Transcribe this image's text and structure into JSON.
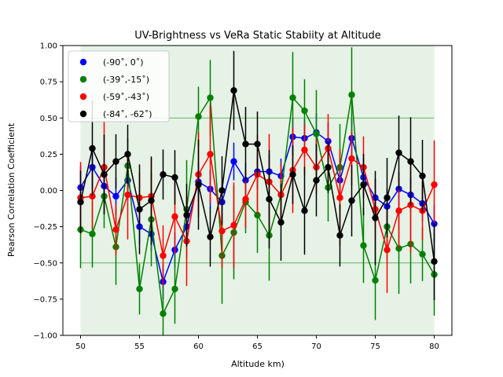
{
  "chart_data": {
    "type": "line",
    "title": "UV-Brightness vs VeRa Static Stabiity at Altitude",
    "xlabel": "Altitude km)",
    "ylabel": "Pearson Correlation Coefficient",
    "xlim": [
      48.5,
      81.5
    ],
    "ylim": [
      -1.0,
      1.0
    ],
    "xticks": [
      50,
      55,
      60,
      65,
      70,
      75,
      80
    ],
    "yticks": [
      -1.0,
      -0.75,
      -0.5,
      -0.25,
      0.0,
      0.25,
      0.5,
      0.75,
      1.0
    ],
    "grid": false,
    "legend_position": "upper-left",
    "shaded_band": {
      "x": [
        50,
        80
      ],
      "y": [
        -1.0,
        1.0
      ],
      "color": "#008000",
      "opacity": 0.1
    },
    "reference_lines": [
      {
        "y": 0.5,
        "x": [
          50,
          80
        ],
        "color": "#008000"
      },
      {
        "y": -0.5,
        "x": [
          50,
          80
        ],
        "color": "#008000"
      }
    ],
    "x": [
      50,
      51,
      52,
      53,
      54,
      55,
      56,
      57,
      58,
      59,
      60,
      61,
      62,
      63,
      64,
      65,
      66,
      67,
      68,
      69,
      70,
      71,
      72,
      73,
      74,
      75,
      76,
      77,
      78,
      79,
      80
    ],
    "series": [
      {
        "name": "(-90˚, 0˚)",
        "color": "#0000ff",
        "values": [
          0.02,
          0.16,
          0.03,
          -0.04,
          0.07,
          -0.25,
          -0.3,
          -0.63,
          -0.41,
          -0.25,
          0.06,
          0.01,
          -0.08,
          0.2,
          0.07,
          0.13,
          0.13,
          0.1,
          0.37,
          0.36,
          0.4,
          0.34,
          0.07,
          0.36,
          0.09,
          -0.05,
          -0.11,
          0.01,
          -0.03,
          -0.09,
          -0.23
        ],
        "errors": [
          0.15,
          0.15,
          0.12,
          0.13,
          0.14,
          0.12,
          0.12,
          0.12,
          0.12,
          0.13,
          0.13,
          0.13,
          0.12,
          0.13,
          0.12,
          0.12,
          0.12,
          0.12,
          0.13,
          0.13,
          0.13,
          0.13,
          0.12,
          0.13,
          0.13,
          0.13,
          0.12,
          0.12,
          0.12,
          0.12,
          0.13
        ]
      },
      {
        "name": "(-39˚,-15˚)",
        "color": "#008000",
        "values": [
          -0.27,
          -0.3,
          -0.04,
          -0.39,
          0.17,
          -0.68,
          -0.2,
          -0.85,
          -0.68,
          -0.13,
          0.51,
          0.64,
          -0.45,
          -0.29,
          -0.08,
          -0.17,
          -0.31,
          -0.03,
          0.64,
          0.55,
          0.39,
          0.02,
          0.16,
          0.66,
          -0.38,
          -0.62,
          -0.25,
          -0.4,
          -0.37,
          -0.44,
          -0.58
        ]
      },
      {
        "name": "(-59˚,-43˚)",
        "color": "#ff0000",
        "values": [
          -0.05,
          -0.04,
          0.16,
          -0.27,
          -0.03,
          -0.05,
          -0.04,
          -0.45,
          -0.18,
          -0.35,
          0.11,
          0.25,
          -0.28,
          -0.24,
          -0.06,
          0.11,
          0.06,
          -0.03,
          0.14,
          0.28,
          0.16,
          0.29,
          -0.05,
          0.22,
          0.16,
          -0.13,
          -0.41,
          -0.14,
          -0.1,
          -0.14,
          0.04
        ]
      },
      {
        "name": "(-84˚, -62˚)",
        "color": "#000000",
        "values": [
          -0.08,
          0.29,
          0.11,
          0.2,
          0.25,
          -0.13,
          -0.07,
          0.11,
          0.09,
          -0.17,
          0.04,
          -0.32,
          0.0,
          0.69,
          0.32,
          0.32,
          -0.06,
          -0.22,
          0.11,
          -0.14,
          0.07,
          0.16,
          -0.31,
          -0.07,
          0.04,
          -0.19,
          -0.05,
          0.26,
          0.2,
          0.1,
          -0.49
        ]
      }
    ]
  }
}
